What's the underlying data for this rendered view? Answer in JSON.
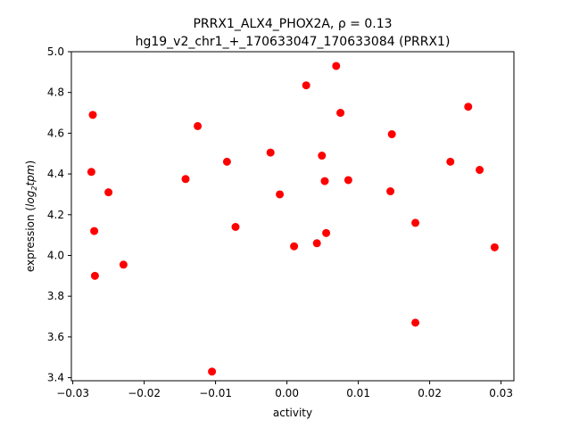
{
  "chart_data": {
    "type": "scatter",
    "title_line1": "PRRX1_ALX4_PHOX2A, ρ = 0.13",
    "title_line2": "hg19_v2_chr1_+_170633047_170633084 (PRRX1)",
    "xlabel": "activity",
    "ylabel_prefix": "expression (",
    "ylabel_math": "log",
    "ylabel_sub": "2",
    "ylabel_math2": "tpm",
    "ylabel_suffix": ")",
    "xlim": [
      -0.0302,
      0.0318
    ],
    "ylim": [
      3.385,
      5.0
    ],
    "xticks": [
      -0.03,
      -0.02,
      -0.01,
      0.0,
      0.01,
      0.02,
      0.03
    ],
    "xtick_labels": [
      "−0.03",
      "−0.02",
      "−0.01",
      "0.00",
      "0.01",
      "0.02",
      "0.03"
    ],
    "yticks": [
      3.4,
      3.6,
      3.8,
      4.0,
      4.2,
      4.4,
      4.6,
      4.8,
      5.0
    ],
    "ytick_labels": [
      "3.4",
      "3.6",
      "3.8",
      "4.0",
      "4.2",
      "4.4",
      "4.6",
      "4.8",
      "5.0"
    ],
    "grid": false,
    "marker_color": "#ff0000",
    "points": [
      {
        "x": -0.0272,
        "y": 4.69
      },
      {
        "x": -0.0274,
        "y": 4.41
      },
      {
        "x": -0.027,
        "y": 4.12
      },
      {
        "x": -0.0269,
        "y": 3.9
      },
      {
        "x": -0.025,
        "y": 4.31
      },
      {
        "x": -0.0229,
        "y": 3.955
      },
      {
        "x": -0.0142,
        "y": 4.375
      },
      {
        "x": -0.0125,
        "y": 4.635
      },
      {
        "x": -0.0105,
        "y": 3.43
      },
      {
        "x": -0.0084,
        "y": 4.46
      },
      {
        "x": -0.0072,
        "y": 4.14
      },
      {
        "x": -0.0023,
        "y": 4.505
      },
      {
        "x": -0.001,
        "y": 4.3
      },
      {
        "x": 0.001,
        "y": 4.045
      },
      {
        "x": 0.0027,
        "y": 4.835
      },
      {
        "x": 0.0042,
        "y": 4.06
      },
      {
        "x": 0.0049,
        "y": 4.49
      },
      {
        "x": 0.0053,
        "y": 4.365
      },
      {
        "x": 0.0055,
        "y": 4.11
      },
      {
        "x": 0.0069,
        "y": 4.93
      },
      {
        "x": 0.0075,
        "y": 4.7
      },
      {
        "x": 0.0086,
        "y": 4.37
      },
      {
        "x": 0.0145,
        "y": 4.315
      },
      {
        "x": 0.0147,
        "y": 4.595
      },
      {
        "x": 0.018,
        "y": 4.16
      },
      {
        "x": 0.018,
        "y": 3.67
      },
      {
        "x": 0.0229,
        "y": 4.46
      },
      {
        "x": 0.0254,
        "y": 4.73
      },
      {
        "x": 0.027,
        "y": 4.42
      },
      {
        "x": 0.0291,
        "y": 4.04
      }
    ]
  }
}
